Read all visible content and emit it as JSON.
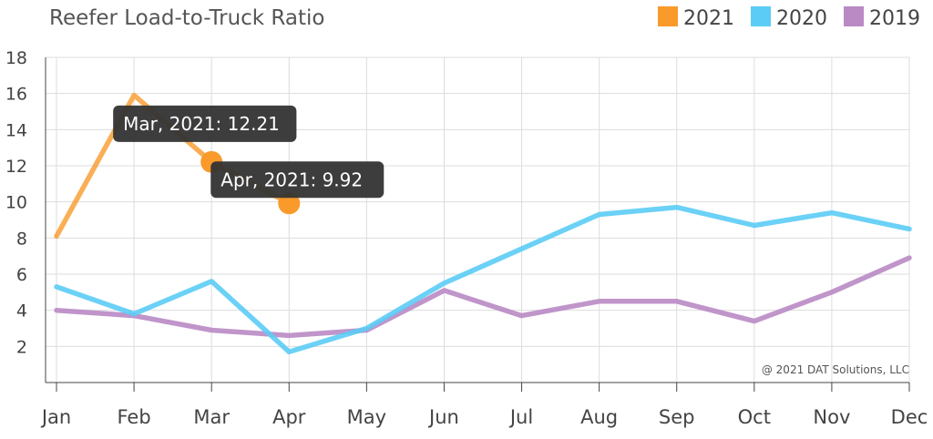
{
  "chart_data": {
    "type": "line",
    "title": "Reefer Load-to-Truck Ratio",
    "categories": [
      "Jan",
      "Feb",
      "Mar",
      "Apr",
      "May",
      "Jun",
      "Jul",
      "Aug",
      "Sep",
      "Oct",
      "Nov",
      "Dec"
    ],
    "ylim": [
      0,
      18
    ],
    "yticks": [
      2,
      4,
      6,
      8,
      10,
      12,
      14,
      16,
      18
    ],
    "grid": true,
    "legend_position": "top-right",
    "series": [
      {
        "name": "2021",
        "color": "#F99A2B",
        "values": [
          8.1,
          15.9,
          12.21,
          9.92,
          null,
          null,
          null,
          null,
          null,
          null,
          null,
          null
        ]
      },
      {
        "name": "2020",
        "color": "#5BCCF5",
        "values": [
          5.3,
          3.8,
          5.6,
          1.7,
          3.0,
          5.5,
          7.4,
          9.3,
          9.7,
          8.7,
          9.4,
          8.5
        ]
      },
      {
        "name": "2019",
        "color": "#B98AC4",
        "values": [
          4.0,
          3.7,
          2.9,
          2.6,
          2.9,
          5.1,
          3.7,
          4.5,
          4.5,
          3.4,
          5.0,
          6.9
        ]
      }
    ],
    "highlighted_points": [
      {
        "series": "2021",
        "category": "Mar",
        "label": "Mar, 2021: 12.21"
      },
      {
        "series": "2021",
        "category": "Apr",
        "label": "Apr, 2021: 9.92"
      }
    ],
    "credit": "@ 2021 DAT Solutions, LLC"
  }
}
